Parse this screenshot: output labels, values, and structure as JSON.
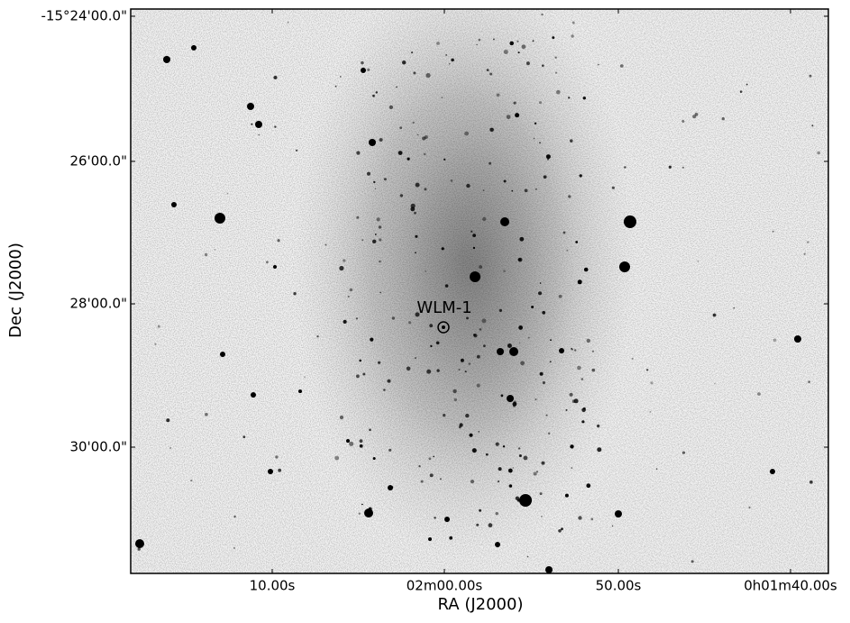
{
  "plot": {
    "x_label": "RA (J2000)",
    "y_label": "Dec (J2000)",
    "x_tick_labels": [
      "10.00s",
      "02m00.00s",
      "50.00s",
      "0h01m40.00s"
    ],
    "y_tick_labels": [
      "-15°24'00.0\"",
      "26'00.0\"",
      "28'00.0\"",
      "30'00.0\""
    ],
    "annotation": "WLM-1"
  }
}
